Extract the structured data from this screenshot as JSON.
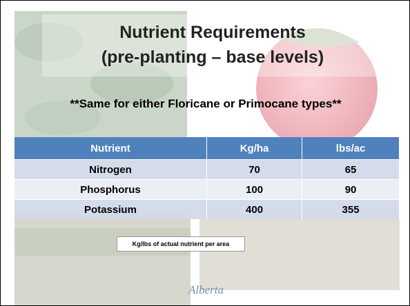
{
  "title": {
    "line1": "Nutrient Requirements",
    "line2": "(pre-planting – base levels)"
  },
  "subtitle": "**Same for either Floricane or Primocane types**",
  "table": {
    "header": [
      "Nutrient",
      "Kg/ha",
      "lbs/ac"
    ],
    "rows": [
      [
        "Nitrogen",
        70,
        65
      ],
      [
        "Phosphorus",
        100,
        90
      ],
      [
        "Potassium",
        400,
        355
      ]
    ]
  },
  "note": "Kg/lbs of actual nutrient per area",
  "logo": "Alberta"
}
